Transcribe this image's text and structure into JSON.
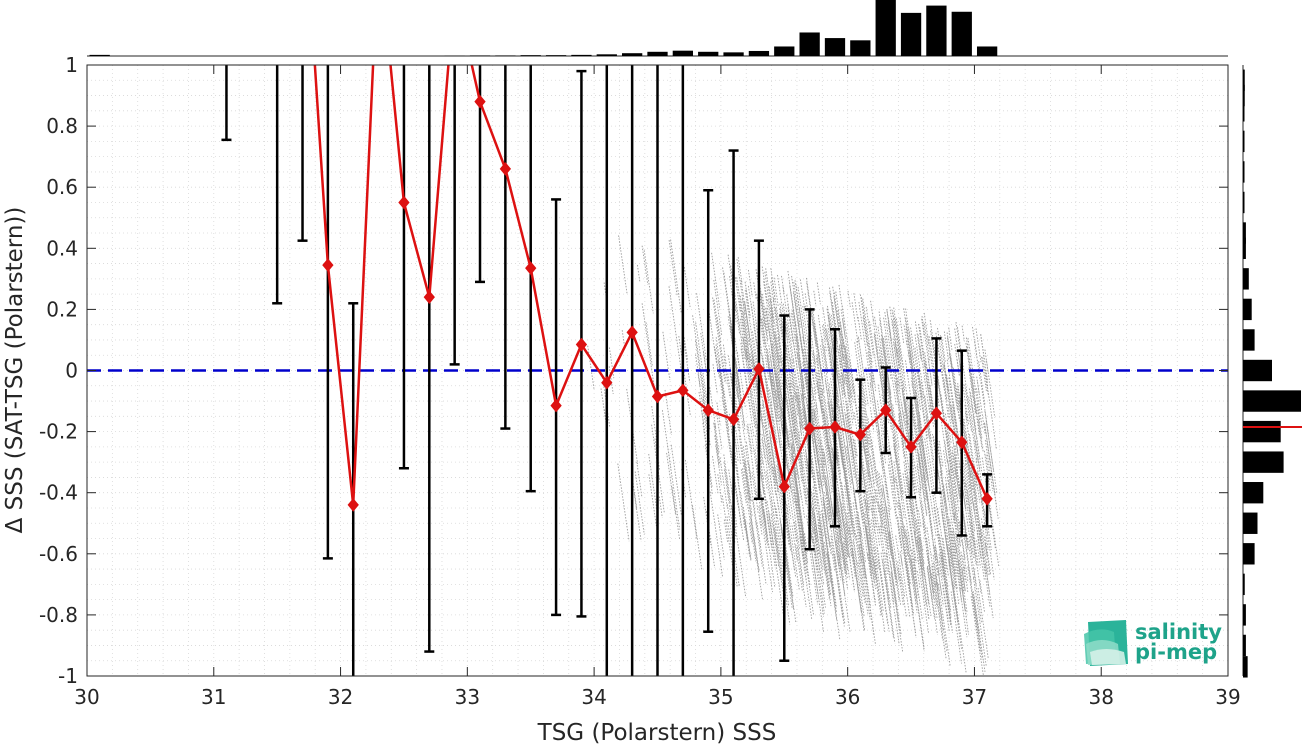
{
  "chart_data": {
    "type": "scatter",
    "xlabel": "TSG (Polarstern) SSS",
    "ylabel": "Δ SSS (SAT-TSG (Polarstern))",
    "xlim": [
      30,
      39
    ],
    "ylim": [
      -1,
      1
    ],
    "x_ticks": [
      "30",
      "31",
      "32",
      "33",
      "34",
      "35",
      "36",
      "37",
      "38",
      "39"
    ],
    "y_ticks": [
      "1",
      "0.8",
      "0.6",
      "0.4",
      "0.2",
      "0",
      "-0.2",
      "-0.4",
      "-0.6",
      "-0.8",
      "-1"
    ],
    "grid": "on (dotted, minor)",
    "reference_line": {
      "y": 0,
      "color": "#0000cc",
      "style": "dashed"
    },
    "binned_mean": {
      "color": "#dd1111",
      "marker": "diamond",
      "x": [
        31.9,
        32.1,
        32.5,
        32.7,
        33.1,
        33.3,
        33.5,
        33.7,
        33.9,
        34.1,
        34.3,
        34.5,
        34.7,
        34.9,
        35.1,
        35.3,
        35.5,
        35.7,
        35.9,
        36.1,
        36.3,
        36.5,
        36.7,
        36.9,
        37.1
      ],
      "y": [
        0.345,
        -0.44,
        0.55,
        0.24,
        0.88,
        0.66,
        0.335,
        -0.115,
        0.085,
        -0.04,
        0.125,
        -0.085,
        -0.065,
        -0.13,
        -0.16,
        0.005,
        -0.38,
        -0.19,
        -0.185,
        -0.21,
        -0.13,
        -0.25,
        -0.14,
        -0.235,
        -0.42
      ]
    },
    "error_bars": {
      "color": "#000000",
      "x": [
        31.1,
        31.5,
        31.7,
        31.9,
        32.1,
        32.5,
        32.7,
        32.9,
        33.1,
        33.3,
        33.5,
        33.7,
        33.9,
        34.1,
        34.3,
        34.5,
        34.7,
        34.9,
        35.1,
        35.3,
        35.5,
        35.7,
        35.9,
        36.1,
        36.3,
        36.5,
        36.7,
        36.9,
        37.1
      ],
      "lower": [
        0.755,
        0.22,
        0.425,
        -0.615,
        -1.2,
        -0.32,
        -0.92,
        0.02,
        0.29,
        -0.19,
        -0.395,
        -0.8,
        -0.805,
        -1.3,
        -1.3,
        -1.3,
        -1.3,
        -0.855,
        -1.3,
        -0.42,
        -0.95,
        -0.585,
        -0.51,
        -0.395,
        -0.27,
        -0.415,
        -0.4,
        -0.54,
        -0.51
      ],
      "upper": [
        1.2,
        1.2,
        1.2,
        1.2,
        0.22,
        1.2,
        1.2,
        1.2,
        1.2,
        1.2,
        1.2,
        0.56,
        0.98,
        1.2,
        1.2,
        1.2,
        1.2,
        0.59,
        0.72,
        0.425,
        0.18,
        0.2,
        0.135,
        -0.03,
        0.01,
        -0.09,
        0.105,
        0.065,
        -0.34
      ]
    },
    "top_histogram": {
      "color": "#000000",
      "x": [
        30.1,
        30.3,
        30.5,
        30.7,
        30.9,
        31.1,
        31.3,
        31.5,
        31.7,
        31.9,
        32.1,
        32.3,
        32.5,
        32.7,
        32.9,
        33.1,
        33.3,
        33.5,
        33.7,
        33.9,
        34.1,
        34.3,
        34.5,
        34.7,
        34.9,
        35.1,
        35.3,
        35.5,
        35.7,
        35.9,
        36.1,
        36.3,
        36.5,
        36.7,
        36.9,
        37.1
      ],
      "values": [
        0.02,
        0.0,
        0.0,
        0.0,
        0.0,
        0.0,
        0.0,
        0.0,
        0.0,
        0.0,
        0.0,
        0.0,
        0.0,
        0.0,
        0.005,
        0.01,
        0.01,
        0.015,
        0.015,
        0.02,
        0.03,
        0.05,
        0.075,
        0.095,
        0.075,
        0.065,
        0.09,
        0.17,
        0.42,
        0.32,
        0.28,
        1.0,
        0.77,
        0.9,
        0.79,
        0.17
      ]
    },
    "right_histogram": {
      "color": "#000000",
      "median_line": {
        "y": -0.185,
        "color": "#dd1111"
      },
      "y": [
        0.95,
        0.9,
        0.85,
        0.75,
        0.65,
        0.55,
        0.45,
        0.4,
        0.3,
        0.2,
        0.1,
        0.0,
        -0.1,
        -0.2,
        -0.3,
        -0.4,
        -0.5,
        -0.6,
        -0.7,
        -0.8,
        -0.9,
        -0.97
      ],
      "values": [
        0.03,
        0.03,
        0.02,
        0.02,
        0.02,
        0.02,
        0.05,
        0.05,
        0.1,
        0.15,
        0.2,
        0.5,
        1.0,
        0.65,
        0.7,
        0.35,
        0.25,
        0.2,
        0.03,
        0.05,
        0.05,
        0.08
      ]
    }
  },
  "logo": {
    "line1": "salinity",
    "line2": "pi-mep",
    "color": "#1ea38a"
  }
}
